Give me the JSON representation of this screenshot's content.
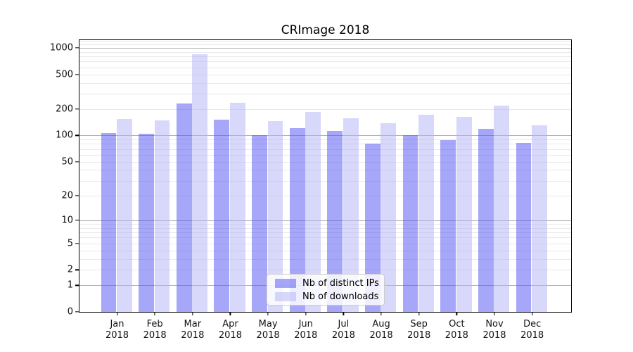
{
  "chart_data": {
    "type": "bar",
    "title": "CRImage 2018",
    "yscale": "log1p",
    "ylim": [
      0,
      1225
    ],
    "grid": true,
    "legend_position": "lower center",
    "categories": [
      "Jan 2018",
      "Feb 2018",
      "Mar 2018",
      "Apr 2018",
      "May 2018",
      "Jun 2018",
      "Jul 2018",
      "Aug 2018",
      "Sep 2018",
      "Oct 2018",
      "Nov 2018",
      "Dec 2018"
    ],
    "yticks": [
      0,
      1,
      2,
      5,
      10,
      20,
      50,
      100,
      200,
      500,
      1000
    ],
    "major_gridlines": [
      1,
      10,
      100,
      1000
    ],
    "minor_gridlines": [
      2,
      3,
      4,
      5,
      6,
      7,
      8,
      9,
      20,
      30,
      40,
      50,
      60,
      70,
      80,
      90,
      200,
      300,
      400,
      500,
      600,
      700,
      800,
      900,
      1100,
      1200
    ],
    "series": [
      {
        "name": "Nb of distinct IPs",
        "color": "#a7a7fa",
        "css_color": "rgba(80,80,245,0.5)",
        "values": [
          106,
          105,
          232,
          153,
          101,
          122,
          112,
          81,
          100,
          88,
          119,
          83
        ]
      },
      {
        "name": "Nb of downloads",
        "color": "#d8d8fb",
        "css_color": "rgba(178,178,247,0.5)",
        "values": [
          154,
          149,
          843,
          238,
          145,
          186,
          158,
          138,
          174,
          164,
          222,
          130
        ]
      }
    ],
    "grid_colors": {
      "major": "#b2b2b2",
      "minor": "#e9e9e9"
    },
    "axis_color": "#000000"
  }
}
